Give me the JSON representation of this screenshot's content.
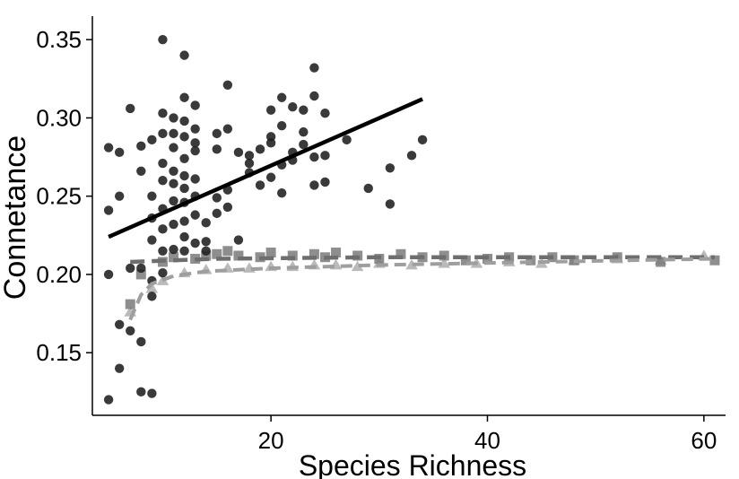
{
  "chart_data": {
    "type": "scatter",
    "xlabel": "Species Richness",
    "ylabel": "Connetance",
    "xlim": [
      3.5,
      62
    ],
    "ylim": [
      0.11,
      0.365
    ],
    "xticks": [
      20,
      40,
      60
    ],
    "yticks": [
      0.15,
      0.2,
      0.25,
      0.3,
      0.35
    ],
    "xtick_labels": [
      "20",
      "40",
      "60"
    ],
    "ytick_labels": [
      "0.15",
      "0.20",
      "0.25",
      "0.30",
      "0.35"
    ],
    "grid": false,
    "legend": "none",
    "colors": {
      "circles": "#1f1f1f",
      "squares": "#7a7a7a",
      "triangles": "#b3b3b3",
      "solid_line": "#000000",
      "dashed_dark": "#6e6e6e",
      "dashed_light": "#9e9e9e",
      "axis": "#000000"
    },
    "series": [
      {
        "marker": "diamond",
        "points": [
          [
            5,
            0.12
          ],
          [
            5,
            0.2
          ],
          [
            5,
            0.241
          ],
          [
            5,
            0.281
          ],
          [
            6,
            0.14
          ],
          [
            6,
            0.168
          ],
          [
            6,
            0.25
          ],
          [
            6,
            0.278
          ],
          [
            7,
            0.164
          ],
          [
            7,
            0.204
          ],
          [
            7,
            0.306
          ],
          [
            8,
            0.125
          ],
          [
            8,
            0.157
          ],
          [
            8,
            0.204
          ],
          [
            8,
            0.266
          ],
          [
            8,
            0.282
          ],
          [
            9,
            0.124
          ],
          [
            9,
            0.186
          ],
          [
            9,
            0.196
          ],
          [
            9,
            0.222
          ],
          [
            9,
            0.236
          ],
          [
            9,
            0.25
          ],
          [
            9,
            0.286
          ],
          [
            10,
            0.201
          ],
          [
            10,
            0.215
          ],
          [
            10,
            0.229
          ],
          [
            10,
            0.242
          ],
          [
            10,
            0.26
          ],
          [
            10,
            0.271
          ],
          [
            10,
            0.29
          ],
          [
            10,
            0.303
          ],
          [
            10,
            0.35
          ],
          [
            11,
            0.216
          ],
          [
            11,
            0.232
          ],
          [
            11,
            0.247
          ],
          [
            11,
            0.258
          ],
          [
            11,
            0.266
          ],
          [
            11,
            0.281
          ],
          [
            11,
            0.29
          ],
          [
            11,
            0.3
          ],
          [
            12,
            0.215
          ],
          [
            12,
            0.224
          ],
          [
            12,
            0.234
          ],
          [
            12,
            0.246
          ],
          [
            12,
            0.255
          ],
          [
            12,
            0.263
          ],
          [
            12,
            0.274
          ],
          [
            12,
            0.288
          ],
          [
            12,
            0.298
          ],
          [
            12,
            0.313
          ],
          [
            12,
            0.34
          ],
          [
            13,
            0.22
          ],
          [
            13,
            0.238
          ],
          [
            13,
            0.25
          ],
          [
            13,
            0.261
          ],
          [
            13,
            0.279
          ],
          [
            13,
            0.284
          ],
          [
            13,
            0.293
          ],
          [
            13,
            0.308
          ],
          [
            14,
            0.215
          ],
          [
            14,
            0.221
          ],
          [
            14,
            0.233
          ],
          [
            15,
            0.239
          ],
          [
            15,
            0.249
          ],
          [
            15,
            0.28
          ],
          [
            15,
            0.29
          ],
          [
            16,
            0.243
          ],
          [
            16,
            0.254
          ],
          [
            16,
            0.293
          ],
          [
            16,
            0.321
          ],
          [
            17,
            0.222
          ],
          [
            17,
            0.278
          ],
          [
            18,
            0.265
          ],
          [
            18,
            0.271
          ],
          [
            18,
            0.276
          ],
          [
            19,
            0.257
          ],
          [
            19,
            0.28
          ],
          [
            20,
            0.262
          ],
          [
            20,
            0.284
          ],
          [
            20,
            0.288
          ],
          [
            20,
            0.305
          ],
          [
            21,
            0.252
          ],
          [
            21,
            0.27
          ],
          [
            21,
            0.295
          ],
          [
            21,
            0.313
          ],
          [
            22,
            0.273
          ],
          [
            22,
            0.278
          ],
          [
            22,
            0.307
          ],
          [
            23,
            0.283
          ],
          [
            23,
            0.291
          ],
          [
            23,
            0.305
          ],
          [
            24,
            0.257
          ],
          [
            24,
            0.275
          ],
          [
            24,
            0.314
          ],
          [
            24,
            0.332
          ],
          [
            25,
            0.259
          ],
          [
            25,
            0.276
          ],
          [
            25,
            0.303
          ],
          [
            27,
            0.286
          ],
          [
            29,
            0.255
          ],
          [
            31,
            0.245
          ],
          [
            31,
            0.268
          ],
          [
            33,
            0.276
          ],
          [
            34,
            0.286
          ]
        ]
      },
      {
        "marker": "square",
        "points": [
          [
            7,
            0.181
          ],
          [
            8,
            0.2
          ],
          [
            10,
            0.208
          ],
          [
            11,
            0.211
          ],
          [
            13,
            0.21
          ],
          [
            14,
            0.212
          ],
          [
            15,
            0.213
          ],
          [
            16,
            0.215
          ],
          [
            17,
            0.212
          ],
          [
            19,
            0.211
          ],
          [
            20,
            0.214
          ],
          [
            22,
            0.212
          ],
          [
            24,
            0.213
          ],
          [
            25,
            0.211
          ],
          [
            26,
            0.214
          ],
          [
            28,
            0.212
          ],
          [
            30,
            0.21
          ],
          [
            32,
            0.213
          ],
          [
            34,
            0.211
          ],
          [
            36,
            0.212
          ],
          [
            38,
            0.209
          ],
          [
            40,
            0.21
          ],
          [
            42,
            0.211
          ],
          [
            44,
            0.209
          ],
          [
            46,
            0.211
          ],
          [
            48,
            0.209
          ],
          [
            52,
            0.211
          ],
          [
            56,
            0.208
          ],
          [
            61,
            0.209
          ]
        ]
      },
      {
        "marker": "triangle",
        "points": [
          [
            7,
            0.176
          ],
          [
            9,
            0.191
          ],
          [
            10,
            0.196
          ],
          [
            12,
            0.201
          ],
          [
            14,
            0.203
          ],
          [
            16,
            0.204
          ],
          [
            18,
            0.204
          ],
          [
            20,
            0.205
          ],
          [
            22,
            0.205
          ],
          [
            24,
            0.206
          ],
          [
            26,
            0.206
          ],
          [
            28,
            0.205
          ],
          [
            30,
            0.207
          ],
          [
            33,
            0.206
          ],
          [
            36,
            0.207
          ],
          [
            39,
            0.207
          ],
          [
            42,
            0.208
          ],
          [
            45,
            0.207
          ],
          [
            48,
            0.209
          ],
          [
            52,
            0.21
          ],
          [
            56,
            0.209
          ],
          [
            60,
            0.212
          ]
        ]
      }
    ],
    "fit_lines": [
      {
        "style": "solid",
        "from": [
          5,
          0.224
        ],
        "to": [
          34,
          0.312
        ]
      },
      {
        "style": "dashed-dark",
        "points": [
          [
            7,
            0.208
          ],
          [
            15,
            0.21
          ],
          [
            30,
            0.211
          ],
          [
            45,
            0.211
          ],
          [
            61,
            0.211
          ]
        ]
      },
      {
        "style": "dashed-light",
        "points": [
          [
            7,
            0.171
          ],
          [
            8,
            0.187
          ],
          [
            9,
            0.194
          ],
          [
            11,
            0.199
          ],
          [
            14,
            0.202
          ],
          [
            20,
            0.204
          ],
          [
            30,
            0.206
          ],
          [
            45,
            0.208
          ],
          [
            61,
            0.21
          ]
        ]
      }
    ]
  }
}
